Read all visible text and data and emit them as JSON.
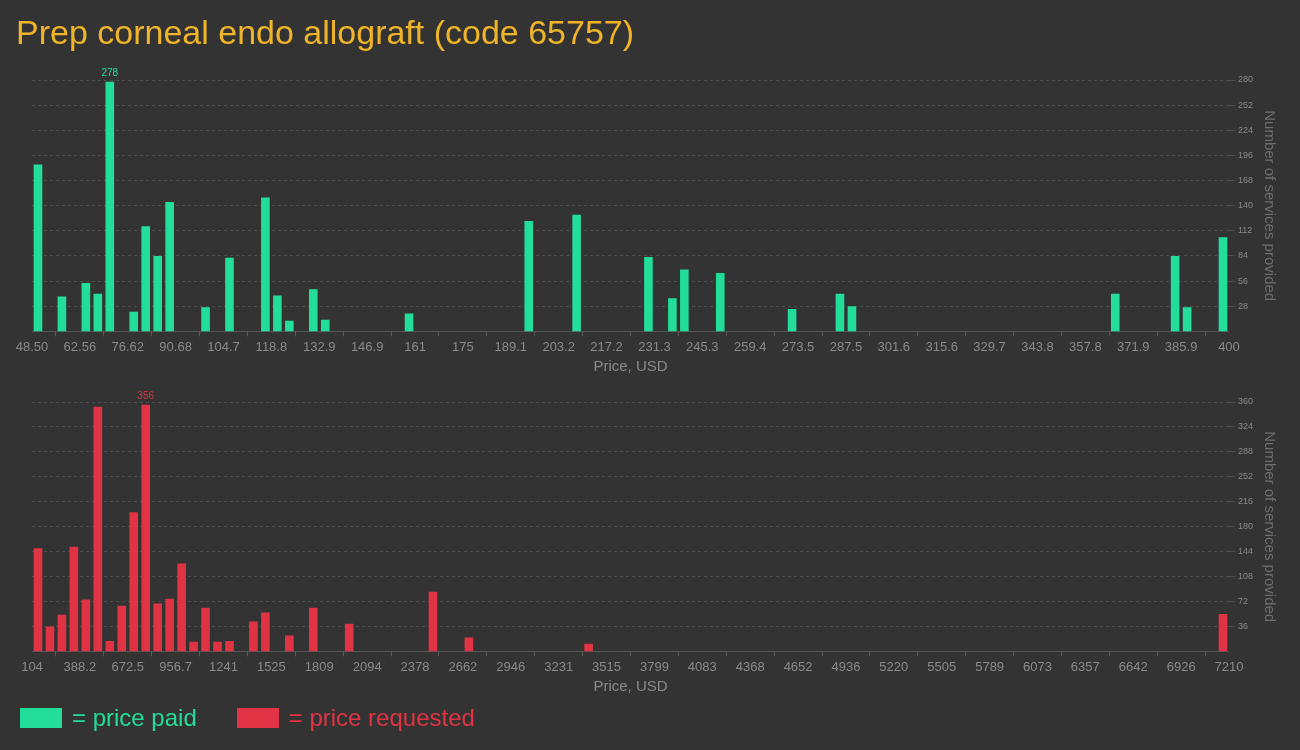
{
  "chart_data": [
    {
      "type": "histogram",
      "title": "Prep corneal endo allograft (code 65757)",
      "xlabel": "Price, USD",
      "ylabel": "Number of services provided",
      "bins": [
        48.5,
        52.015,
        55.53,
        59.045,
        62.56,
        66.075,
        69.59,
        73.105,
        76.62,
        80.135,
        83.65,
        87.165,
        90.68,
        94.195,
        97.71,
        101.225,
        104.74,
        108.255,
        111.77,
        115.285,
        118.8,
        122.315,
        125.83,
        129.345,
        132.86,
        136.375,
        139.89,
        143.405,
        146.92,
        150.435,
        153.95,
        157.465,
        160.98,
        164.495,
        168.01,
        171.525,
        175.04,
        178.555,
        182.07,
        185.585,
        189.1,
        192.615,
        196.13,
        199.645,
        203.16,
        206.675,
        210.19,
        213.705,
        217.22,
        220.735,
        224.25,
        227.765,
        231.28,
        234.795,
        238.31,
        241.825,
        245.34,
        248.855,
        252.37,
        255.885,
        259.4,
        262.915,
        266.43,
        269.945,
        273.46,
        276.975,
        280.49,
        284.005,
        287.52,
        291.035,
        294.55,
        298.065,
        301.58,
        305.095,
        308.61,
        312.125,
        315.64,
        319.155,
        322.67,
        326.185,
        329.7,
        333.215,
        336.73,
        340.245,
        343.76,
        347.275,
        350.79,
        354.305,
        357.82,
        361.335,
        364.85,
        368.365,
        371.88,
        375.395,
        378.91,
        382.425,
        385.94,
        389.455,
        392.97,
        396.485,
        400
      ],
      "series": [
        {
          "name": "= price paid",
          "color": "#23de9b",
          "values": [
            186,
            0,
            39,
            0,
            54,
            42,
            278,
            0,
            22,
            117,
            84,
            144,
            0,
            0,
            27,
            0,
            82,
            0,
            0,
            149,
            40,
            12,
            0,
            47,
            13,
            0,
            0,
            0,
            0,
            0,
            0,
            20,
            0,
            0,
            0,
            0,
            0,
            0,
            0,
            0,
            0,
            123,
            0,
            0,
            0,
            130,
            0,
            0,
            0,
            0,
            0,
            83,
            0,
            37,
            69,
            0,
            0,
            65,
            0,
            0,
            0,
            0,
            0,
            25,
            0,
            0,
            0,
            42,
            28,
            0,
            0,
            0,
            0,
            0,
            0,
            0,
            0,
            0,
            0,
            0,
            0,
            0,
            0,
            0,
            0,
            0,
            0,
            0,
            0,
            0,
            42,
            0,
            0,
            0,
            0,
            84,
            27,
            0,
            0,
            105
          ],
          "value_labels": [
            null,
            null,
            null,
            null,
            null,
            null,
            "278",
            null,
            null,
            null,
            null,
            null,
            null,
            null,
            null,
            null,
            null,
            null,
            null,
            null,
            null,
            null,
            null,
            null,
            null,
            null,
            null,
            null,
            null,
            null,
            null,
            null,
            null,
            null,
            null,
            null,
            null,
            null,
            null,
            null,
            null,
            null,
            null,
            null,
            null,
            null,
            null,
            null,
            null,
            null,
            null,
            null,
            null,
            null,
            null,
            null,
            null,
            null,
            null,
            null,
            null,
            null,
            null,
            null,
            null,
            null,
            null,
            null,
            null,
            null,
            null,
            null,
            null,
            null,
            null,
            null,
            null,
            null,
            null,
            null,
            null,
            null,
            null,
            null,
            null,
            null,
            null,
            null,
            null,
            null,
            null,
            null,
            null,
            null,
            null,
            null,
            null,
            null,
            null,
            null
          ]
        }
      ],
      "xlim": [
        48.5,
        400
      ],
      "xticks": [
        {
          "value": 48.5,
          "label": "48.50"
        },
        62.56,
        76.62,
        90.68,
        {
          "value": 104.74,
          "label": "104.7"
        },
        118.8,
        {
          "value": 132.86,
          "label": "132.9"
        },
        {
          "value": 146.92,
          "label": "146.9"
        },
        {
          "value": 160.98,
          "label": "161"
        },
        {
          "value": 175.04,
          "label": "175"
        },
        189.1,
        {
          "value": 203.16,
          "label": "203.2"
        },
        {
          "value": 217.22,
          "label": "217.2"
        },
        {
          "value": 231.28,
          "label": "231.3"
        },
        {
          "value": 245.34,
          "label": "245.3"
        },
        259.4,
        {
          "value": 273.46,
          "label": "273.5"
        },
        {
          "value": 287.52,
          "label": "287.5"
        },
        {
          "value": 301.58,
          "label": "301.6"
        },
        {
          "value": 315.64,
          "label": "315.6"
        },
        329.7,
        {
          "value": 343.76,
          "label": "343.8"
        },
        {
          "value": 357.82,
          "label": "357.8"
        },
        {
          "value": 371.88,
          "label": "371.9"
        },
        {
          "value": 385.94,
          "label": "385.9"
        },
        400
      ],
      "ylim": [
        0,
        280
      ],
      "yticks": [
        28,
        56,
        84,
        112,
        140,
        168,
        196,
        224,
        252,
        280
      ],
      "grid": "y",
      "legend": "bottom left"
    },
    {
      "type": "histogram",
      "xlabel": "Price, USD",
      "ylabel": "Number of services provided",
      "bins": [
        104,
        175.06,
        246.12,
        317.18,
        388.24,
        459.3,
        530.36,
        601.42,
        672.48,
        743.54,
        814.6,
        885.66,
        956.72,
        1027.78,
        1098.84,
        1169.9,
        1240.96,
        1312.02,
        1383.08,
        1454.14,
        1525.2,
        1596.26,
        1667.32,
        1738.38,
        1809.44,
        1880.5,
        1951.56,
        2022.62,
        2093.68,
        2164.74,
        2235.8,
        2306.86,
        2377.92,
        2448.98,
        2520.04,
        2591.1,
        2662.16,
        2733.22,
        2804.28,
        2875.34,
        2946.4,
        3017.46,
        3088.52,
        3159.58,
        3230.64,
        3301.7,
        3372.76,
        3443.82,
        3514.88,
        3585.94,
        3657,
        3728.06,
        3799.12,
        3870.18,
        3941.24,
        4012.3,
        4083.36,
        4154.42,
        4225.48,
        4296.54,
        4367.6,
        4438.66,
        4509.72,
        4580.78,
        4651.84,
        4722.9,
        4793.96,
        4865.02,
        4936.08,
        5007.14,
        5078.2,
        5149.26,
        5220.32,
        5291.38,
        5362.44,
        5433.5,
        5504.56,
        5575.62,
        5646.68,
        5717.74,
        5788.8,
        5859.86,
        5930.92,
        6001.98,
        6073.04,
        6144.1,
        6215.16,
        6286.22,
        6357.28,
        6428.34,
        6499.4,
        6570.46,
        6641.52,
        6712.58,
        6783.64,
        6854.7,
        6925.76,
        6996.82,
        7067.88,
        7138.94,
        7210
      ],
      "series": [
        {
          "name": "= price requested",
          "color": "#e03444",
          "values": [
            149,
            36,
            53,
            151,
            75,
            353,
            15,
            66,
            201,
            356,
            69,
            76,
            127,
            14,
            63,
            14,
            15,
            0,
            43,
            56,
            0,
            23,
            0,
            63,
            0,
            0,
            40,
            0,
            0,
            0,
            0,
            0,
            0,
            86,
            0,
            0,
            20,
            0,
            0,
            0,
            0,
            0,
            0,
            0,
            0,
            0,
            11,
            0,
            0,
            0,
            0,
            0,
            0,
            0,
            0,
            0,
            0,
            0,
            0,
            0,
            0,
            0,
            0,
            0,
            0,
            0,
            0,
            0,
            0,
            0,
            0,
            0,
            0,
            0,
            0,
            0,
            0,
            0,
            0,
            0,
            0,
            0,
            0,
            0,
            0,
            0,
            0,
            0,
            0,
            0,
            0,
            0,
            0,
            0,
            0,
            0,
            0,
            0,
            0,
            54
          ],
          "value_labels": [
            null,
            null,
            null,
            null,
            null,
            null,
            null,
            null,
            null,
            "356",
            null,
            null,
            null,
            null,
            null,
            null,
            null,
            null,
            null,
            null,
            null,
            null,
            null,
            null,
            null,
            null,
            null,
            null,
            null,
            null,
            null,
            null,
            null,
            null,
            null,
            null,
            null,
            null,
            null,
            null,
            null,
            null,
            null,
            null,
            null,
            null,
            null,
            null,
            null,
            null,
            null,
            null,
            null,
            null,
            null,
            null,
            null,
            null,
            null,
            null,
            null,
            null,
            null,
            null,
            null,
            null,
            null,
            null,
            null,
            null,
            null,
            null,
            null,
            null,
            null,
            null,
            null,
            null,
            null,
            null,
            null,
            null,
            null,
            null,
            null,
            null,
            null,
            null,
            null,
            null,
            null,
            null,
            null,
            null,
            null,
            null,
            null,
            null,
            null,
            null
          ]
        }
      ],
      "xlim": [
        104,
        7210
      ],
      "xticks": [
        104,
        388.2,
        672.5,
        956.7,
        1241,
        1525,
        1809,
        2094,
        2378,
        2662,
        2946,
        3231,
        3515,
        3799,
        4083,
        4368,
        4652,
        4936,
        5220,
        5505,
        5789,
        6073,
        6357,
        6642,
        6926,
        7210
      ],
      "ylim": [
        0,
        360
      ],
      "yticks": [
        36,
        72,
        108,
        144,
        180,
        216,
        252,
        288,
        324,
        360
      ],
      "grid": "y",
      "legend": "bottom left"
    }
  ]
}
